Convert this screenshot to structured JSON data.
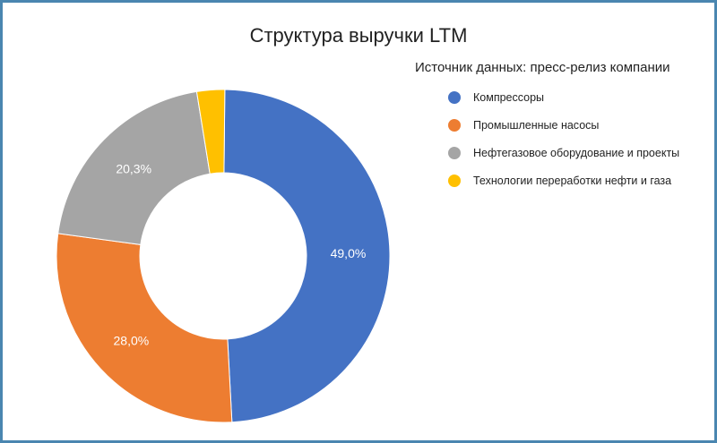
{
  "chart_data": {
    "type": "pie",
    "variant": "donut",
    "title": "Структура выручки LTM",
    "source_note": "Источник данных: пресс-релиз компании",
    "legend_position": "right",
    "categories": [
      "Компрессоры",
      "Промышленные насосы",
      "Нефтегазовое оборудование и проекты",
      "Технологии переработки нефти и газа"
    ],
    "values": [
      49.0,
      28.0,
      20.3,
      2.7
    ],
    "value_labels": [
      "49,0%",
      "28,0%",
      "20,3%",
      ""
    ],
    "colors": [
      "#4472c4",
      "#ed7d31",
      "#a5a5a5",
      "#ffc000"
    ]
  }
}
